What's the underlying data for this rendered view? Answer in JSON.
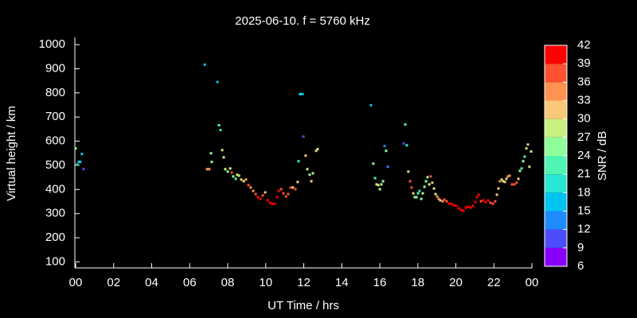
{
  "chart_data": {
    "type": "scatter",
    "title": "2025-06-10. f = 5760 kHz",
    "xlabel": "UT Time / hrs",
    "ylabel": "Virtual height / km",
    "xlim": [
      0,
      24
    ],
    "xticks": [
      {
        "value": 0,
        "label": "00"
      },
      {
        "value": 2,
        "label": "02"
      },
      {
        "value": 4,
        "label": "04"
      },
      {
        "value": 6,
        "label": "06"
      },
      {
        "value": 8,
        "label": "08"
      },
      {
        "value": 10,
        "label": "10"
      },
      12,
      14,
      16,
      18,
      20,
      22,
      {
        "value": 24,
        "label": "00"
      }
    ],
    "ylim": [
      75,
      1030
    ],
    "yticks": [
      100,
      200,
      300,
      400,
      500,
      600,
      700,
      800,
      900,
      1000
    ],
    "colorbar": {
      "label": "SNR / dB",
      "lim": [
        6,
        42
      ],
      "ticks": [
        6,
        9,
        12,
        15,
        18,
        21,
        24,
        27,
        30,
        33,
        36,
        39,
        42
      ],
      "colors": [
        "#8a00ff",
        "#4d4dff",
        "#1e8cff",
        "#00c4f0",
        "#2ae6d2",
        "#50f5b4",
        "#90ff98",
        "#c8f080",
        "#f8c878",
        "#ff9250",
        "#ff5032",
        "#ff0000"
      ]
    },
    "x": [
      0.0,
      0.08,
      0.17,
      0.25,
      0.33,
      0.42,
      6.79,
      7.12,
      6.91,
      7.03,
      7.16,
      7.46,
      7.54,
      7.62,
      7.71,
      7.79,
      7.87,
      8.0,
      8.13,
      8.21,
      8.29,
      8.42,
      8.5,
      8.59,
      8.71,
      8.84,
      8.96,
      9.09,
      9.21,
      9.34,
      9.47,
      9.59,
      9.72,
      9.84,
      9.97,
      10.09,
      10.22,
      10.35,
      10.47,
      10.6,
      10.68,
      10.81,
      10.93,
      11.06,
      11.18,
      11.31,
      11.43,
      11.56,
      11.68,
      11.81,
      11.94,
      11.98,
      11.73,
      12.1,
      12.19,
      12.31,
      12.4,
      12.48,
      12.65,
      12.73,
      15.54,
      15.66,
      15.75,
      15.83,
      15.92,
      16.0,
      16.08,
      16.17,
      16.25,
      16.33,
      16.42,
      17.26,
      17.34,
      17.42,
      17.5,
      17.59,
      17.67,
      17.76,
      17.84,
      17.93,
      18.01,
      18.09,
      18.18,
      18.26,
      18.35,
      18.43,
      18.51,
      18.6,
      18.68,
      18.76,
      18.85,
      18.93,
      19.02,
      19.1,
      19.18,
      19.31,
      19.39,
      19.52,
      19.64,
      19.77,
      19.9,
      20.02,
      20.15,
      20.27,
      20.4,
      20.53,
      20.65,
      20.78,
      20.9,
      21.03,
      21.11,
      21.2,
      21.32,
      21.45,
      21.57,
      21.7,
      21.82,
      21.95,
      22.07,
      22.16,
      22.24,
      22.32,
      22.41,
      22.49,
      22.58,
      22.66,
      22.74,
      22.83,
      22.95,
      23.08,
      23.2,
      23.29,
      23.37,
      23.46,
      23.54,
      23.62,
      23.71,
      23.79,
      23.87,
      23.96
    ],
    "values": [
      570,
      503,
      514,
      514,
      547,
      484,
      917,
      550,
      484,
      484,
      514,
      845,
      666,
      646,
      563,
      533,
      484,
      474,
      487,
      470,
      454,
      444,
      461,
      457,
      441,
      434,
      441,
      418,
      408,
      394,
      381,
      368,
      361,
      375,
      388,
      355,
      345,
      341,
      341,
      368,
      394,
      401,
      384,
      371,
      381,
      408,
      408,
      401,
      431,
      795,
      795,
      619,
      517,
      540,
      484,
      461,
      434,
      467,
      560,
      567,
      749,
      507,
      447,
      421,
      418,
      401,
      421,
      434,
      580,
      560,
      494,
      590,
      669,
      583,
      474,
      434,
      408,
      384,
      368,
      368,
      384,
      394,
      361,
      384,
      411,
      434,
      451,
      421,
      454,
      428,
      404,
      381,
      371,
      361,
      355,
      351,
      358,
      351,
      341,
      341,
      335,
      332,
      322,
      315,
      312,
      325,
      328,
      325,
      332,
      348,
      368,
      378,
      351,
      355,
      348,
      355,
      345,
      341,
      351,
      378,
      404,
      434,
      441,
      434,
      431,
      444,
      454,
      457,
      421,
      421,
      428,
      444,
      477,
      487,
      517,
      536,
      570,
      586,
      494,
      557
    ],
    "snr": [
      24,
      18,
      18,
      15,
      15,
      9,
      15,
      24,
      33,
      33,
      24,
      15,
      21,
      18,
      27,
      27,
      27,
      24,
      27,
      36,
      24,
      21,
      27,
      27,
      30,
      27,
      33,
      36,
      33,
      33,
      36,
      39,
      39,
      36,
      30,
      39,
      39,
      39,
      39,
      39,
      39,
      36,
      36,
      36,
      36,
      36,
      30,
      36,
      30,
      18,
      15,
      9,
      18,
      30,
      27,
      24,
      30,
      27,
      30,
      27,
      15,
      24,
      21,
      27,
      27,
      27,
      27,
      24,
      12,
      24,
      12,
      9,
      21,
      18,
      27,
      36,
      36,
      30,
      24,
      24,
      21,
      18,
      24,
      27,
      24,
      24,
      24,
      27,
      36,
      30,
      27,
      27,
      33,
      33,
      30,
      33,
      36,
      36,
      39,
      39,
      39,
      39,
      39,
      39,
      39,
      39,
      39,
      39,
      39,
      39,
      39,
      39,
      36,
      39,
      39,
      39,
      36,
      36,
      36,
      30,
      30,
      33,
      30,
      27,
      30,
      30,
      33,
      33,
      36,
      36,
      36,
      30,
      24,
      21,
      24,
      21,
      27,
      30,
      27,
      27
    ]
  }
}
